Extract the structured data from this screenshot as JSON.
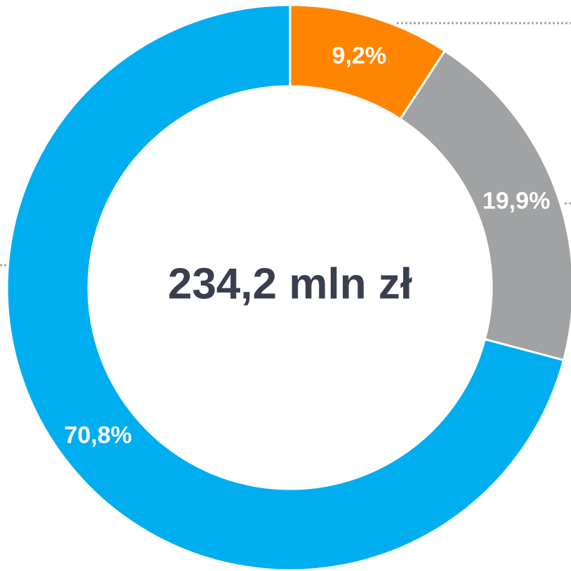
{
  "chart_data": {
    "type": "donut",
    "values": [
      9.2,
      19.9,
      70.8
    ],
    "value_labels": [
      "9,2%",
      "19,9%",
      "70,8%"
    ],
    "colors": [
      "#ff8500",
      "#a0a2a3",
      "#00aeef"
    ],
    "center_label": "234,2 mln zł"
  }
}
